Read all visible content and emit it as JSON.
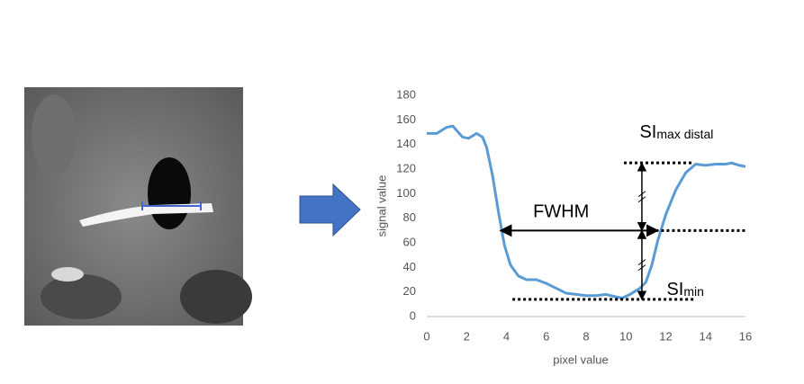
{
  "chart_data": {
    "type": "line",
    "x_label": "pixel value",
    "y_label": "signal value",
    "xlim": [
      0,
      16
    ],
    "ylim": [
      0,
      180
    ],
    "xticks": [
      0,
      2,
      4,
      6,
      8,
      10,
      12,
      14,
      16
    ],
    "yticks": [
      0,
      20,
      40,
      60,
      80,
      100,
      120,
      140,
      160,
      180
    ],
    "x": [
      0,
      0.5,
      1,
      1.3,
      1.8,
      2.1,
      2.5,
      2.8,
      3,
      3.3,
      3.6,
      3.9,
      4.2,
      4.6,
      5,
      5.5,
      6,
      6.5,
      7,
      7.5,
      8,
      8.5,
      9,
      9.5,
      9.8,
      10.2,
      10.7,
      11,
      11.3,
      11.6,
      12,
      12.5,
      13,
      13.5,
      14,
      14.5,
      15,
      15.3,
      15.7,
      16
    ],
    "series": [
      {
        "color": "#5b9bd5",
        "values": [
          149,
          149,
          154,
          155,
          146,
          145,
          149,
          146,
          138,
          115,
          85,
          58,
          42,
          33,
          30,
          30,
          27,
          23,
          19,
          18,
          17,
          17,
          18,
          16,
          15,
          18,
          23,
          28,
          42,
          62,
          83,
          103,
          117,
          124,
          123,
          124,
          124,
          125,
          123,
          122
        ]
      }
    ],
    "levels": [
      {
        "label": "SI",
        "sub": "max distal",
        "y": 125,
        "xlim": [
          9.9,
          13.4
        ]
      },
      {
        "y": 70,
        "xlim": [
          11.5,
          16
        ]
      },
      {
        "label": "SI",
        "sub": "min",
        "y": 14,
        "xlim": [
          4.3,
          13.4
        ]
      }
    ],
    "fwhm": {
      "label": "FWHM",
      "xlim": [
        3.7,
        11.6
      ],
      "y": 70
    },
    "measure_x": 10.8
  }
}
